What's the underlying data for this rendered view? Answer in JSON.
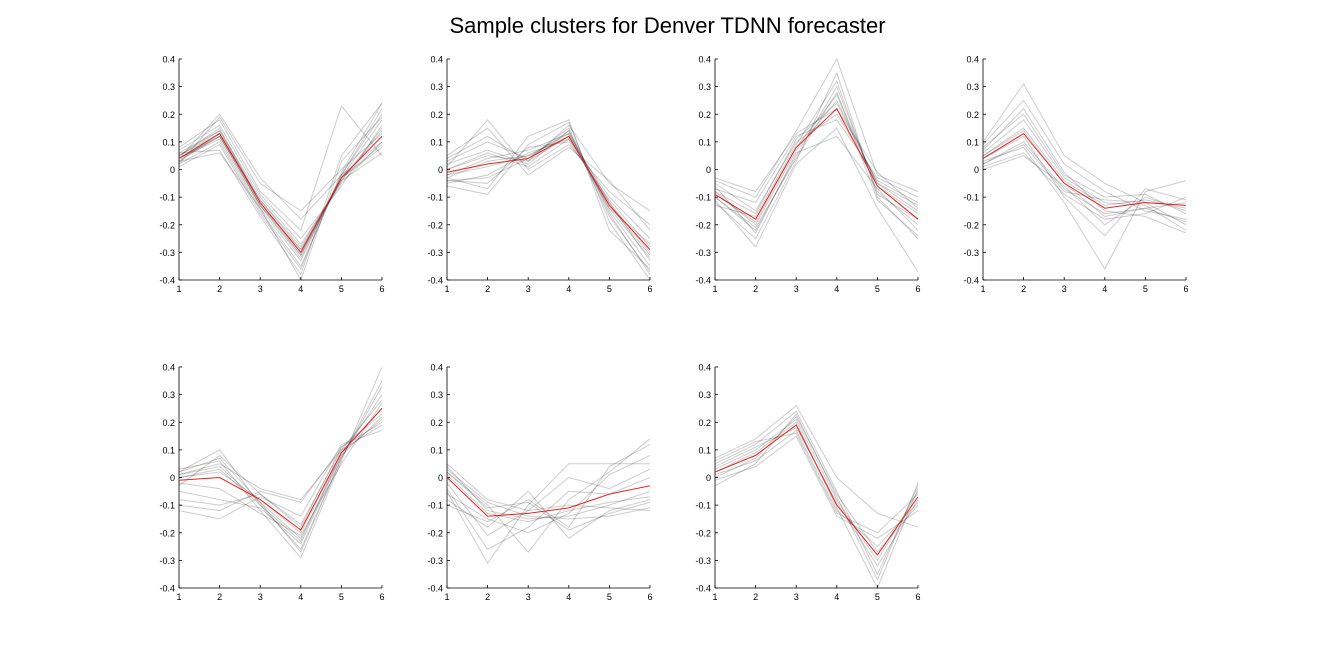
{
  "title": "Sample clusters for Denver TDNN forecaster",
  "colors": {
    "member": "#000000",
    "centroid": "#e8231f",
    "axis": "#000000"
  },
  "chart_data": [
    {
      "type": "line",
      "x": [
        1,
        2,
        3,
        4,
        5,
        6
      ],
      "xticks": [
        "1",
        "2",
        "3",
        "4",
        "5",
        "6"
      ],
      "yticks": [
        "0.4",
        "0.3",
        "0.2",
        "0.1",
        "0",
        "-0.1",
        "-0.2",
        "-0.3",
        "-0.4"
      ],
      "xlim": [
        1,
        6
      ],
      "ylim": [
        -0.4,
        0.4
      ],
      "grid": false,
      "centroid": [
        0.04,
        0.13,
        -0.12,
        -0.3,
        -0.03,
        0.12
      ],
      "members": [
        [
          0.03,
          0.12,
          -0.13,
          -0.31,
          -0.03,
          0.18
        ],
        [
          0.05,
          0.13,
          -0.11,
          -0.29,
          -0.04,
          0.14
        ],
        [
          0.04,
          0.11,
          -0.14,
          -0.33,
          -0.02,
          0.2
        ],
        [
          0.06,
          0.14,
          -0.1,
          -0.27,
          -0.05,
          0.1
        ],
        [
          0.02,
          0.1,
          -0.15,
          -0.35,
          -0.02,
          0.22
        ],
        [
          0.05,
          0.15,
          -0.12,
          -0.3,
          -0.03,
          0.08
        ],
        [
          0.04,
          0.12,
          -0.11,
          -0.28,
          -0.04,
          0.06
        ],
        [
          0.03,
          0.13,
          -0.13,
          -0.32,
          -0.03,
          0.12
        ],
        [
          0.07,
          0.16,
          -0.09,
          -0.25,
          -0.06,
          0.16
        ],
        [
          0.01,
          0.09,
          -0.16,
          -0.36,
          -0.01,
          0.24
        ],
        [
          0.08,
          0.18,
          -0.08,
          -0.22,
          0.23,
          0.05
        ],
        [
          0.02,
          0.19,
          -0.05,
          -0.15,
          0.0,
          0.13
        ],
        [
          0.04,
          0.2,
          -0.03,
          -0.18,
          -0.02,
          0.1
        ],
        [
          0.06,
          0.07,
          -0.17,
          -0.38,
          0.05,
          0.24
        ],
        [
          0.03,
          0.06,
          -0.14,
          -0.4,
          0.03,
          0.19
        ],
        [
          0.05,
          0.14,
          -0.12,
          -0.31,
          -0.03,
          0.09
        ],
        [
          0.04,
          0.12,
          -0.13,
          -0.29,
          -0.04,
          0.15
        ]
      ]
    },
    {
      "type": "line",
      "x": [
        1,
        2,
        3,
        4,
        5,
        6
      ],
      "xticks": [
        "1",
        "2",
        "3",
        "4",
        "5",
        "6"
      ],
      "yticks": [
        "0.4",
        "0.3",
        "0.2",
        "0.1",
        "0",
        "-0.1",
        "-0.2",
        "-0.3",
        "-0.4"
      ],
      "xlim": [
        1,
        6
      ],
      "ylim": [
        -0.4,
        0.4
      ],
      "grid": false,
      "centroid": [
        -0.01,
        0.02,
        0.04,
        0.12,
        -0.13,
        -0.29
      ],
      "members": [
        [
          -0.03,
          0.03,
          0.05,
          0.13,
          -0.12,
          -0.3
        ],
        [
          0.0,
          0.05,
          0.03,
          0.12,
          -0.14,
          -0.32
        ],
        [
          -0.05,
          -0.02,
          0.06,
          0.11,
          -0.1,
          -0.25
        ],
        [
          0.02,
          0.07,
          0.02,
          0.14,
          -0.15,
          -0.35
        ],
        [
          -0.04,
          -0.05,
          0.08,
          0.1,
          -0.11,
          -0.28
        ],
        [
          0.03,
          0.1,
          0.04,
          0.15,
          -0.16,
          -0.38
        ],
        [
          -0.02,
          0.01,
          0.05,
          0.12,
          -0.13,
          -0.31
        ],
        [
          0.01,
          0.18,
          0.0,
          0.09,
          -0.08,
          -0.2
        ],
        [
          -0.06,
          -0.09,
          0.09,
          0.17,
          -0.19,
          -0.4
        ],
        [
          0.04,
          0.12,
          0.03,
          0.16,
          -0.05,
          -0.15
        ],
        [
          -0.03,
          -0.07,
          0.12,
          0.18,
          -0.22,
          -0.36
        ],
        [
          0.05,
          0.15,
          -0.02,
          0.08,
          -0.04,
          -0.22
        ],
        [
          -0.02,
          0.04,
          0.07,
          0.13,
          -0.14,
          -0.27
        ],
        [
          0.0,
          0.06,
          0.01,
          0.11,
          -0.12,
          -0.33
        ],
        [
          -0.04,
          -0.03,
          0.04,
          0.14,
          -0.17,
          -0.37
        ]
      ]
    },
    {
      "type": "line",
      "x": [
        1,
        2,
        3,
        4,
        5,
        6
      ],
      "xticks": [
        "1",
        "2",
        "3",
        "4",
        "5",
        "6"
      ],
      "yticks": [
        "0.4",
        "0.3",
        "0.2",
        "0.1",
        "0",
        "-0.1",
        "-0.2",
        "-0.3",
        "-0.4"
      ],
      "xlim": [
        1,
        6
      ],
      "ylim": [
        -0.4,
        0.4
      ],
      "grid": false,
      "centroid": [
        -0.09,
        -0.18,
        0.08,
        0.22,
        -0.06,
        -0.18
      ],
      "members": [
        [
          -0.08,
          -0.2,
          0.07,
          0.25,
          -0.05,
          -0.15
        ],
        [
          -0.1,
          -0.22,
          0.05,
          0.3,
          -0.08,
          -0.2
        ],
        [
          -0.05,
          -0.15,
          0.1,
          0.2,
          -0.04,
          -0.12
        ],
        [
          -0.12,
          -0.25,
          0.03,
          0.35,
          -0.1,
          -0.25
        ],
        [
          -0.07,
          -0.12,
          0.12,
          0.18,
          -0.03,
          -0.1
        ],
        [
          -0.04,
          -0.1,
          0.14,
          0.4,
          -0.02,
          -0.08
        ],
        [
          -0.11,
          -0.28,
          0.02,
          0.15,
          -0.14,
          -0.37
        ],
        [
          -0.09,
          -0.19,
          0.08,
          0.27,
          -0.06,
          -0.16
        ],
        [
          -0.06,
          -0.23,
          0.06,
          0.12,
          -0.07,
          -0.22
        ],
        [
          -0.13,
          -0.17,
          0.09,
          0.32,
          -0.09,
          -0.18
        ],
        [
          -0.03,
          -0.08,
          0.13,
          0.22,
          -0.01,
          -0.14
        ],
        [
          -0.1,
          -0.21,
          0.04,
          0.28,
          -0.11,
          -0.24
        ],
        [
          -0.08,
          -0.16,
          0.11,
          0.24,
          -0.05,
          -0.13
        ]
      ]
    },
    {
      "type": "line",
      "x": [
        1,
        2,
        3,
        4,
        5,
        6
      ],
      "xticks": [
        "1",
        "2",
        "3",
        "4",
        "5",
        "6"
      ],
      "yticks": [
        "0.4",
        "0.3",
        "0.2",
        "0.1",
        "0",
        "-0.1",
        "-0.2",
        "-0.3",
        "-0.4"
      ],
      "xlim": [
        1,
        6
      ],
      "ylim": [
        -0.4,
        0.4
      ],
      "grid": false,
      "centroid": [
        0.04,
        0.13,
        -0.05,
        -0.14,
        -0.12,
        -0.13
      ],
      "members": [
        [
          0.05,
          0.15,
          -0.04,
          -0.13,
          -0.11,
          -0.14
        ],
        [
          0.02,
          0.1,
          -0.07,
          -0.16,
          -0.14,
          -0.12
        ],
        [
          0.08,
          0.2,
          -0.02,
          -0.1,
          -0.09,
          -0.16
        ],
        [
          0.01,
          0.06,
          -0.09,
          -0.18,
          -0.16,
          -0.1
        ],
        [
          0.1,
          0.31,
          0.05,
          -0.05,
          -0.12,
          -0.2
        ],
        [
          0.03,
          0.08,
          -0.12,
          -0.36,
          -0.08,
          -0.04
        ],
        [
          0.06,
          0.18,
          -0.03,
          -0.12,
          -0.13,
          -0.22
        ],
        [
          0.0,
          0.05,
          -0.06,
          -0.2,
          -0.1,
          -0.15
        ],
        [
          0.09,
          0.25,
          0.02,
          -0.08,
          -0.15,
          -0.18
        ],
        [
          0.04,
          0.12,
          -0.1,
          -0.24,
          -0.07,
          -0.11
        ],
        [
          0.07,
          0.22,
          -0.01,
          -0.15,
          -0.17,
          -0.23
        ],
        [
          0.02,
          0.09,
          -0.08,
          -0.11,
          -0.12,
          -0.13
        ],
        [
          0.05,
          0.14,
          -0.05,
          -0.17,
          -0.14,
          -0.19
        ]
      ]
    },
    {
      "type": "line",
      "x": [
        1,
        2,
        3,
        4,
        5,
        6
      ],
      "xticks": [
        "1",
        "2",
        "3",
        "4",
        "5",
        "6"
      ],
      "yticks": [
        "0.4",
        "0.3",
        "0.2",
        "0.1",
        "0",
        "-0.1",
        "-0.2",
        "-0.3",
        "-0.4"
      ],
      "xlim": [
        1,
        6
      ],
      "ylim": [
        -0.4,
        0.4
      ],
      "grid": false,
      "centroid": [
        -0.01,
        0.0,
        -0.08,
        -0.19,
        0.09,
        0.25
      ],
      "members": [
        [
          0.01,
          0.04,
          -0.09,
          -0.22,
          0.08,
          0.22
        ],
        [
          -0.03,
          0.08,
          -0.06,
          -0.17,
          0.1,
          0.28
        ],
        [
          0.02,
          0.1,
          -0.1,
          -0.26,
          0.07,
          0.35
        ],
        [
          -0.1,
          -0.12,
          -0.05,
          -0.09,
          0.11,
          0.2
        ],
        [
          0.03,
          0.06,
          -0.12,
          -0.29,
          0.06,
          0.4
        ],
        [
          -0.12,
          -0.15,
          -0.07,
          -0.14,
          0.12,
          0.17
        ],
        [
          0.0,
          0.02,
          -0.08,
          -0.2,
          0.09,
          0.25
        ],
        [
          -0.05,
          -0.08,
          -0.11,
          -0.24,
          0.08,
          0.3
        ],
        [
          0.01,
          0.05,
          -0.04,
          -0.08,
          0.1,
          0.19
        ],
        [
          -0.02,
          -0.04,
          -0.13,
          -0.21,
          0.05,
          0.27
        ],
        [
          0.02,
          0.07,
          -0.09,
          -0.27,
          0.07,
          0.33
        ],
        [
          -0.08,
          -0.1,
          -0.06,
          -0.18,
          0.11,
          0.23
        ],
        [
          0.0,
          0.03,
          -0.1,
          -0.23,
          0.09,
          0.21
        ]
      ]
    },
    {
      "type": "line",
      "x": [
        1,
        2,
        3,
        4,
        5,
        6
      ],
      "xticks": [
        "1",
        "2",
        "3",
        "4",
        "5",
        "6"
      ],
      "yticks": [
        "0.4",
        "0.3",
        "0.2",
        "0.1",
        "0",
        "-0.1",
        "-0.2",
        "-0.3",
        "-0.4"
      ],
      "xlim": [
        1,
        6
      ],
      "ylim": [
        -0.4,
        0.4
      ],
      "grid": false,
      "centroid": [
        0.0,
        -0.14,
        -0.13,
        -0.11,
        -0.06,
        -0.03
      ],
      "members": [
        [
          0.04,
          -0.12,
          -0.15,
          -0.14,
          -0.1,
          -0.05
        ],
        [
          -0.05,
          -0.31,
          -0.1,
          0.05,
          0.05,
          0.05
        ],
        [
          0.02,
          -0.1,
          -0.27,
          -0.08,
          0.02,
          0.14
        ],
        [
          -0.08,
          -0.18,
          -0.05,
          -0.22,
          -0.12,
          -0.08
        ],
        [
          0.03,
          -0.09,
          -0.14,
          -0.15,
          -0.14,
          -0.11
        ],
        [
          -0.02,
          -0.21,
          -0.12,
          0.0,
          -0.04,
          0.03
        ],
        [
          0.01,
          -0.13,
          -0.16,
          -0.12,
          -0.09,
          -0.07
        ],
        [
          -0.1,
          -0.16,
          -0.08,
          -0.18,
          0.04,
          0.12
        ],
        [
          0.05,
          -0.08,
          -0.12,
          -0.1,
          -0.11,
          -0.12
        ],
        [
          -0.04,
          -0.26,
          -0.18,
          -0.05,
          -0.06,
          0.0
        ],
        [
          0.02,
          -0.11,
          -0.09,
          -0.19,
          -0.13,
          -0.09
        ],
        [
          -0.06,
          -0.15,
          -0.2,
          -0.13,
          0.01,
          0.08
        ]
      ]
    },
    {
      "type": "line",
      "x": [
        1,
        2,
        3,
        4,
        5,
        6
      ],
      "xticks": [
        "1",
        "2",
        "3",
        "4",
        "5",
        "6"
      ],
      "yticks": [
        "0.4",
        "0.3",
        "0.2",
        "0.1",
        "0",
        "-0.1",
        "-0.2",
        "-0.3",
        "-0.4"
      ],
      "xlim": [
        1,
        6
      ],
      "ylim": [
        -0.4,
        0.4
      ],
      "grid": false,
      "centroid": [
        0.02,
        0.08,
        0.19,
        -0.1,
        -0.28,
        -0.07
      ],
      "members": [
        [
          0.03,
          0.1,
          0.21,
          -0.08,
          -0.3,
          -0.05
        ],
        [
          0.01,
          0.06,
          0.17,
          -0.12,
          -0.25,
          -0.09
        ],
        [
          0.05,
          0.12,
          0.24,
          -0.05,
          -0.35,
          -0.03
        ],
        [
          -0.01,
          0.04,
          0.15,
          -0.14,
          -0.22,
          -0.12
        ],
        [
          0.07,
          0.14,
          0.26,
          0.0,
          -0.13,
          -0.18
        ],
        [
          0.02,
          0.09,
          0.2,
          -0.11,
          -0.4,
          -0.04
        ],
        [
          0.04,
          0.11,
          0.18,
          -0.09,
          -0.32,
          -0.08
        ],
        [
          0.0,
          0.07,
          0.22,
          -0.06,
          -0.27,
          -0.1
        ],
        [
          0.06,
          0.13,
          0.16,
          -0.13,
          -0.2,
          -0.06
        ],
        [
          -0.03,
          0.05,
          0.23,
          -0.07,
          -0.37,
          -0.02
        ]
      ]
    }
  ]
}
